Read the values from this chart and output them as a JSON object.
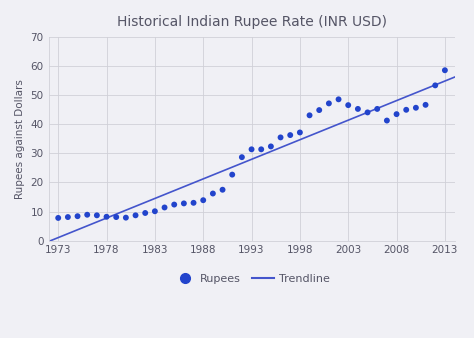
{
  "title": "Historical Indian Rupee Rate (INR USD)",
  "ylabel": "Rupees against Dollars",
  "xlabel": "",
  "background_color": "#f0f0f5",
  "plot_bg_color": "#f0f0f5",
  "grid_color": "#d0d0d8",
  "dot_color": "#2244cc",
  "line_color": "#4455cc",
  "years": [
    1973,
    1974,
    1975,
    1976,
    1977,
    1978,
    1979,
    1980,
    1981,
    1982,
    1983,
    1984,
    1985,
    1986,
    1987,
    1988,
    1989,
    1990,
    1991,
    1992,
    1993,
    1994,
    1995,
    1996,
    1997,
    1998,
    1999,
    2000,
    2001,
    2002,
    2003,
    2004,
    2005,
    2006,
    2007,
    2008,
    2009,
    2010,
    2011,
    2012,
    2013
  ],
  "values": [
    7.8,
    8.1,
    8.4,
    8.9,
    8.7,
    8.2,
    8.1,
    7.9,
    8.7,
    9.5,
    10.1,
    11.4,
    12.4,
    12.8,
    13.0,
    13.9,
    16.2,
    17.5,
    22.7,
    28.7,
    31.4,
    31.4,
    32.4,
    35.5,
    36.3,
    37.2,
    43.1,
    44.9,
    47.2,
    48.6,
    46.6,
    45.3,
    44.1,
    45.3,
    41.3,
    43.5,
    45.0,
    45.7,
    46.7,
    53.4,
    58.6
  ],
  "xticks": [
    1973,
    1978,
    1983,
    1988,
    1993,
    1998,
    2003,
    2008,
    2013
  ],
  "yticks": [
    0,
    10,
    20,
    30,
    40,
    50,
    60,
    70
  ],
  "ylim": [
    0,
    70
  ],
  "xlim": [
    1972,
    2014
  ],
  "title_color": "#555566",
  "tick_label_color": "#555566"
}
